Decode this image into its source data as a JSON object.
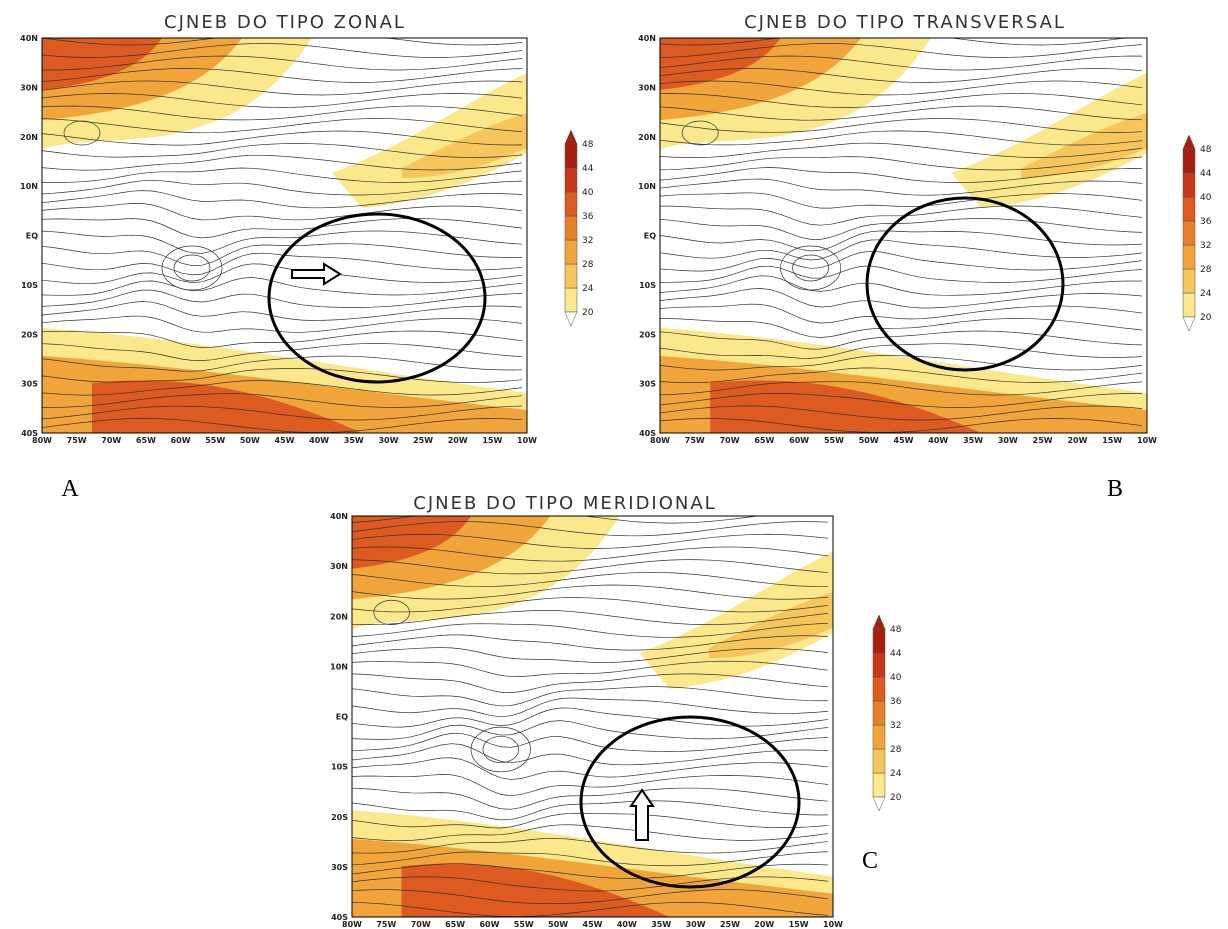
{
  "panels": [
    {
      "title": "CJNEB DO TIPO ZONAL",
      "letter": "A"
    },
    {
      "title": "CJNEB DO TIPO TRANSVERSAL",
      "letter": "B"
    },
    {
      "title": "CJNEB DO TIPO MERIDIONAL",
      "letter": "C"
    }
  ],
  "lat_labels": [
    "40N",
    "30N",
    "20N",
    "10N",
    "EQ",
    "10S",
    "20S",
    "30S",
    "40S"
  ],
  "lon_labels": [
    "80W",
    "75W",
    "70W",
    "65W",
    "60W",
    "55W",
    "50W",
    "45W",
    "40W",
    "35W",
    "30W",
    "25W",
    "20W",
    "15W",
    "10W"
  ],
  "colorbar": {
    "levels": [
      20,
      24,
      28,
      32,
      36,
      40,
      44,
      48
    ],
    "colors": [
      "#fbe88a",
      "#f7c65a",
      "#f0a43a",
      "#e8802a",
      "#dd5a20",
      "#c83818",
      "#a51e10"
    ]
  }
}
